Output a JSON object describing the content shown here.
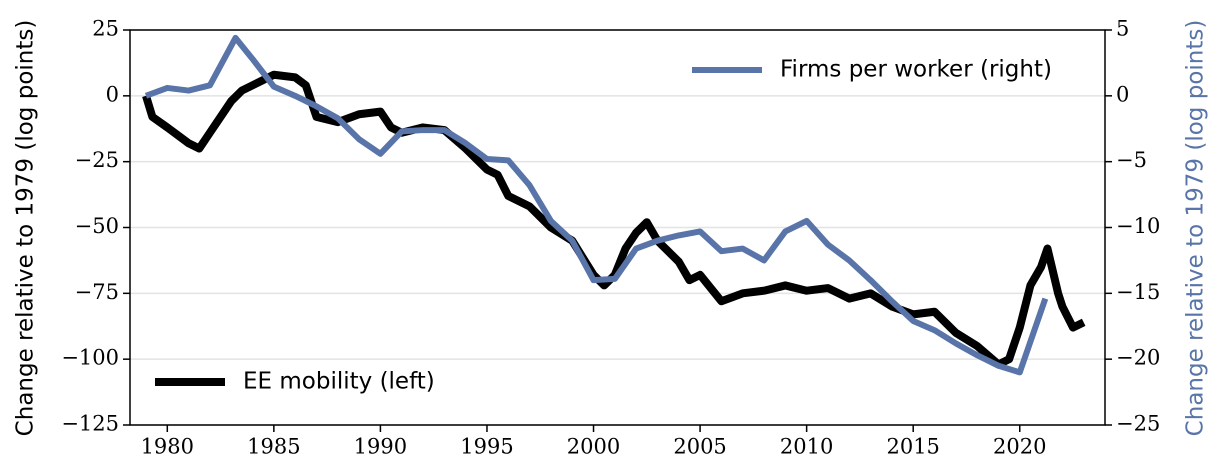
{
  "chart_data": {
    "type": "line",
    "y_label": "Change relative to 1979 (log points)",
    "y2_label": "Change relative to 1979 (log points)",
    "y2_label_color": "#5874a8",
    "xlim": [
      1978.25,
      2024
    ],
    "xticks": [
      1980,
      1985,
      1990,
      1995,
      2000,
      2005,
      2010,
      2015,
      2020
    ],
    "ylim": [
      -125,
      25
    ],
    "yticks": [
      {
        "value": -125,
        "label": "−125"
      },
      {
        "value": -100,
        "label": "−100"
      },
      {
        "value": -75,
        "label": "−75"
      },
      {
        "value": -50,
        "label": "−50"
      },
      {
        "value": -25,
        "label": "−25"
      },
      0,
      25
    ],
    "y2lim": [
      -25,
      5
    ],
    "y2ticks": [
      {
        "value": -25,
        "label": "−25"
      },
      {
        "value": -20,
        "label": "−20"
      },
      {
        "value": -15,
        "label": "−15"
      },
      {
        "value": -10,
        "label": "−10"
      },
      {
        "value": -5,
        "label": "−5"
      },
      0,
      5
    ],
    "grid": true,
    "series": [
      {
        "name": "EE mobility (left)",
        "color": "#000000",
        "axis": "y",
        "legend_loc": "lower left",
        "x": [
          1979,
          1979.3,
          1980,
          1981,
          1981.5,
          1982,
          1983,
          1983.5,
          1984,
          1985,
          1986,
          1986.5,
          1987,
          1988,
          1989,
          1990,
          1990.5,
          1991,
          1992,
          1993,
          1994,
          1995,
          1995.5,
          1996,
          1997,
          1998,
          1999,
          2000,
          2000.5,
          2001,
          2001.5,
          2002,
          2002.5,
          2003,
          2004,
          2004.5,
          2005,
          2006,
          2007,
          2008,
          2009,
          2010,
          2011,
          2012,
          2013,
          2014,
          2015,
          2016,
          2017,
          2018,
          2019,
          2019.5,
          2020,
          2020.5,
          2021,
          2021.3,
          2021.8,
          2022,
          2022.5,
          2023
        ],
        "values": [
          0,
          -8,
          -12,
          -18,
          -20,
          -14,
          -2,
          2,
          4,
          8,
          7,
          4,
          -8,
          -10,
          -7,
          -6,
          -12,
          -14,
          -12,
          -13,
          -20,
          -28,
          -30,
          -38,
          -42,
          -50,
          -55,
          -68,
          -72,
          -68,
          -58,
          -52,
          -48,
          -55,
          -63,
          -70,
          -68,
          -78,
          -75,
          -74,
          -72,
          -74,
          -73,
          -77,
          -75,
          -80,
          -83,
          -82,
          -90,
          -95,
          -102,
          -100,
          -88,
          -72,
          -65,
          -58,
          -75,
          -80,
          -88,
          -86
        ]
      },
      {
        "name": "Firms per worker (right)",
        "color": "#5874a8",
        "axis": "y2",
        "legend_loc": "upper right",
        "x": [
          1979,
          1980,
          1981,
          1982,
          1983.2,
          1984,
          1985,
          1986,
          1987,
          1988,
          1989,
          1990,
          1991,
          1992,
          1993,
          1994,
          1995,
          1996,
          1997,
          1998,
          1999,
          2000,
          2001,
          2002,
          2003,
          2004,
          2005,
          2006,
          2007,
          2008,
          2009,
          2010,
          2011,
          2012,
          2013,
          2014,
          2015,
          2016,
          2017,
          2018,
          2019,
          2020,
          2021.2
        ],
        "values": [
          0,
          0.6,
          0.4,
          0.8,
          4.4,
          2.8,
          0.7,
          0,
          -0.8,
          -1.7,
          -3.3,
          -4.4,
          -2.7,
          -2.6,
          -2.6,
          -3.6,
          -4.8,
          -4.9,
          -6.8,
          -9.5,
          -11,
          -14,
          -13.9,
          -11.6,
          -11,
          -10.6,
          -10.3,
          -11.8,
          -11.6,
          -12.5,
          -10.3,
          -9.5,
          -11.3,
          -12.5,
          -14,
          -15.6,
          -17.1,
          -17.8,
          -18.8,
          -19.7,
          -20.5,
          -21,
          -15.4
        ]
      }
    ]
  }
}
